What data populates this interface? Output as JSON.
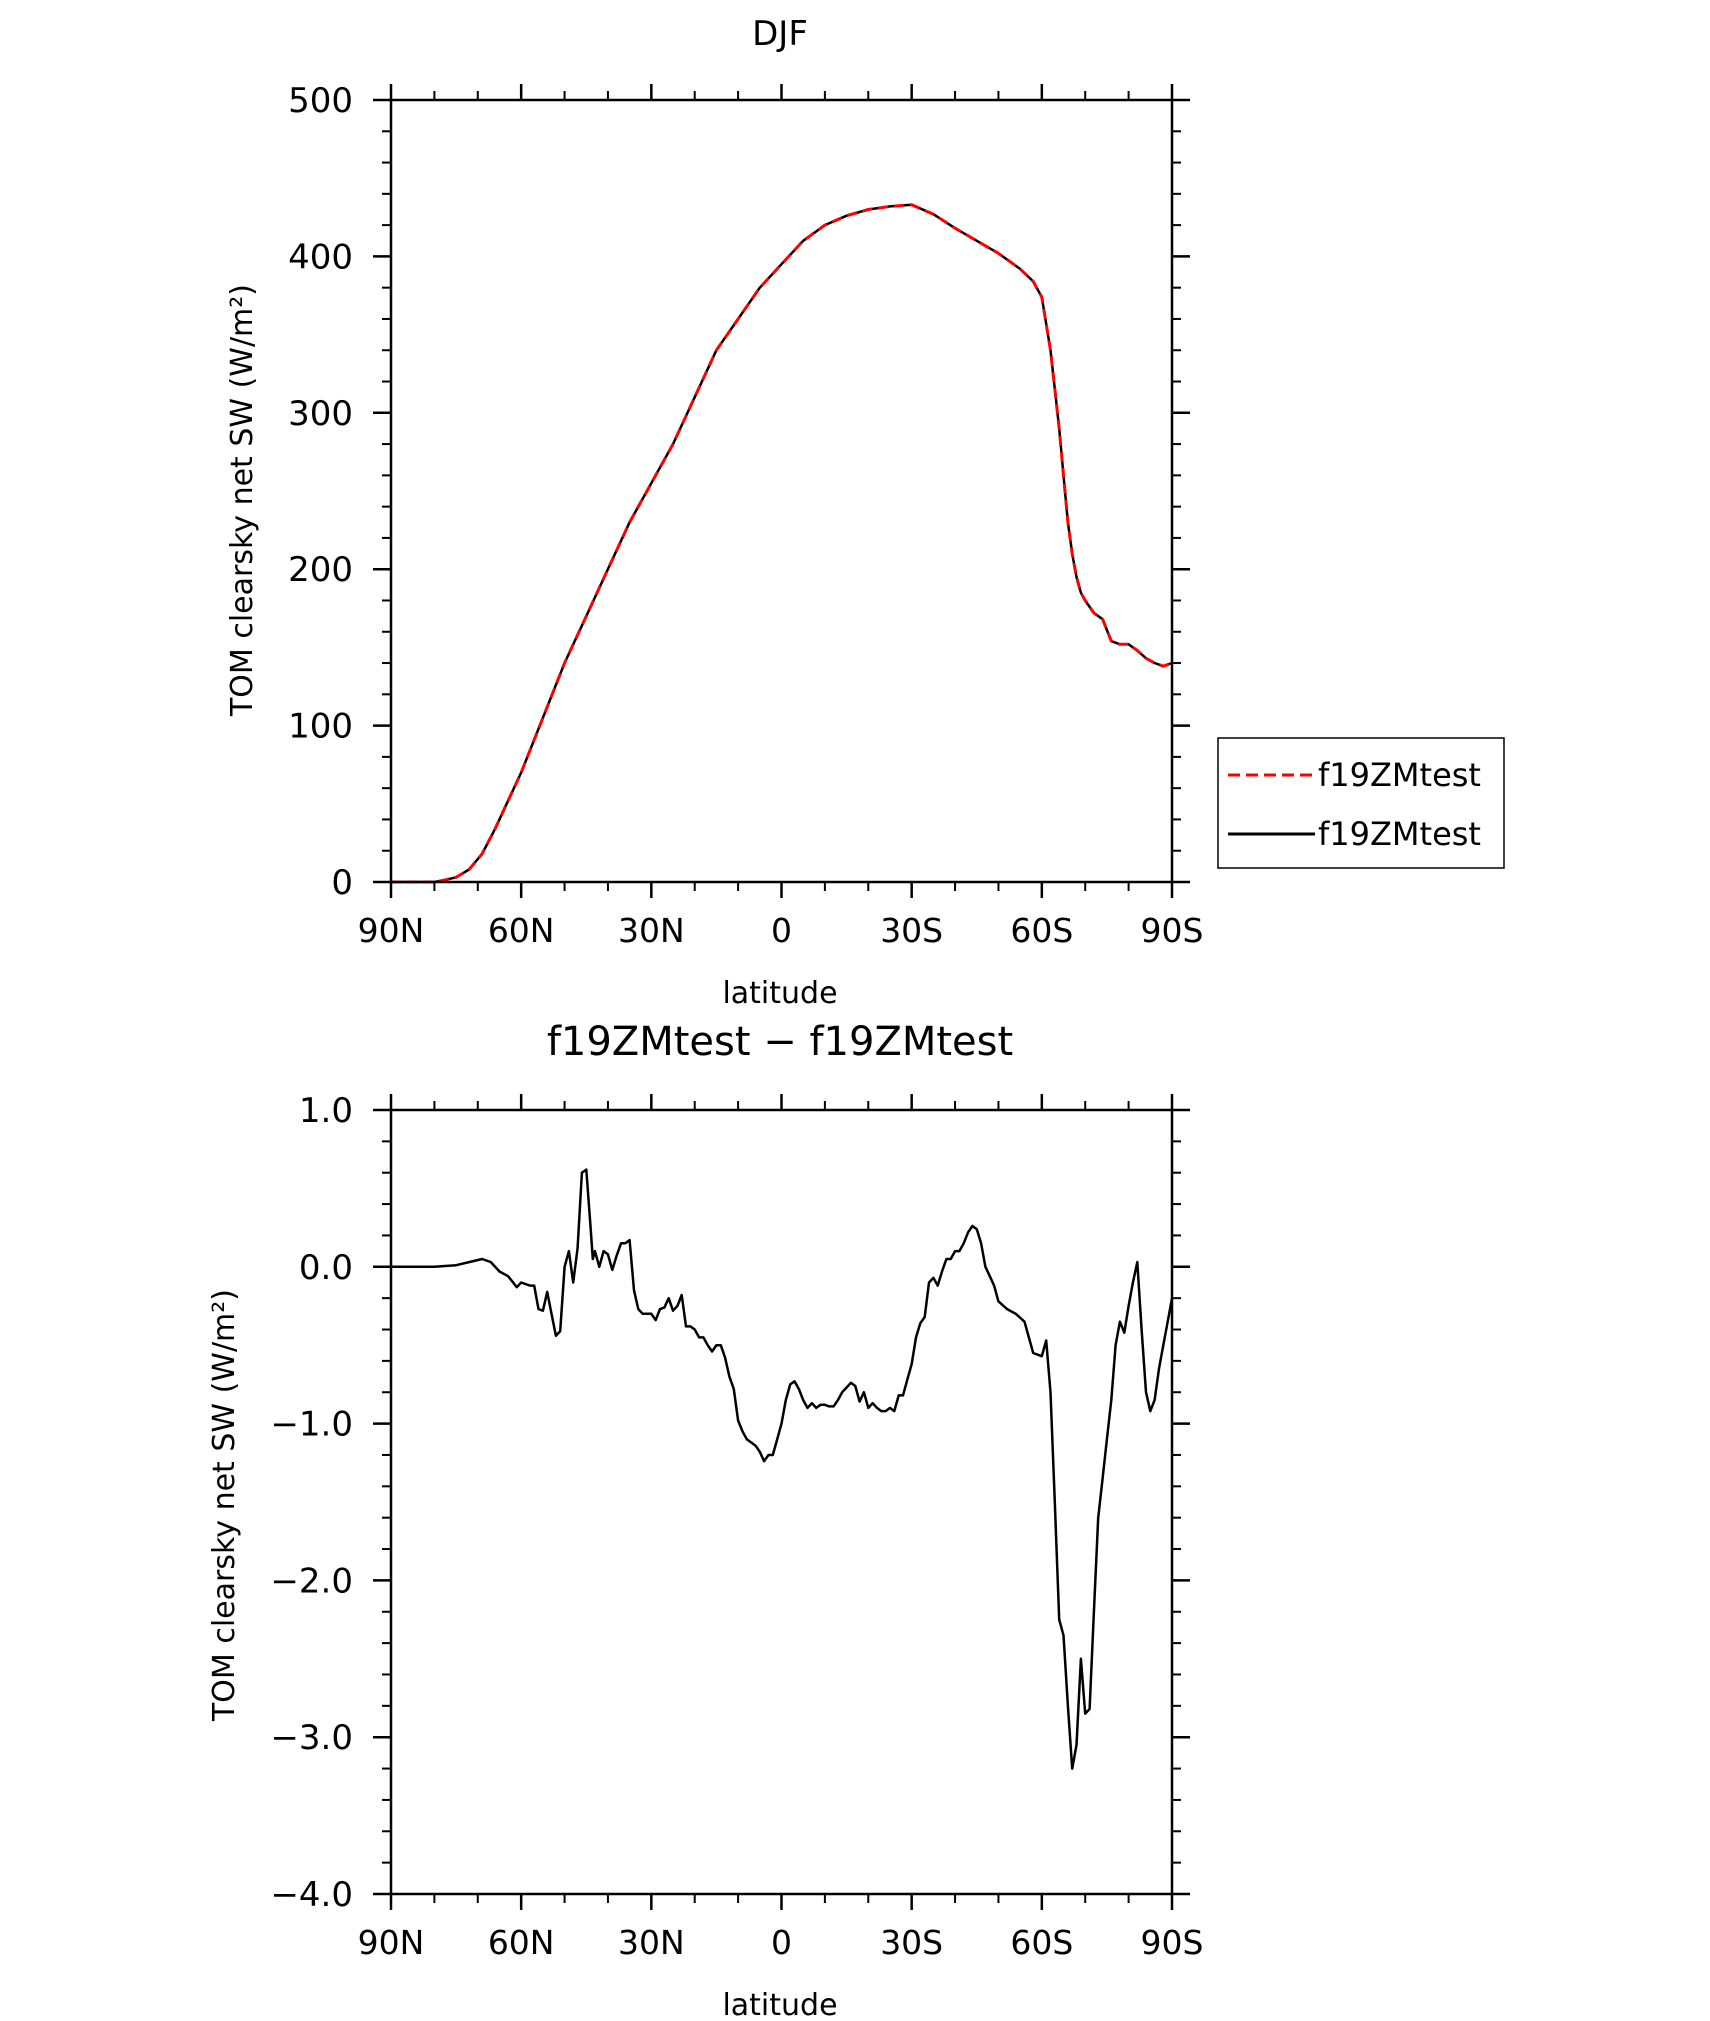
{
  "colors": {
    "axis": "#000000",
    "dashed_series": "#ff0000",
    "solid_series": "#000000"
  },
  "chart_data": [
    {
      "type": "line",
      "title": "DJF",
      "xlabel": "latitude",
      "ylabel": "TOM clearsky net SW (W/m²)",
      "xlim": [
        90,
        -90
      ],
      "ylim": [
        0,
        500
      ],
      "x_tick_values": [
        90,
        60,
        30,
        0,
        -30,
        -60,
        -90
      ],
      "x_tick_labels": [
        "90N",
        "60N",
        "30N",
        "0",
        "30S",
        "60S",
        "90S"
      ],
      "y_tick_values": [
        0,
        100,
        200,
        300,
        400,
        500
      ],
      "y_tick_labels": [
        "0",
        "100",
        "200",
        "300",
        "400",
        "500"
      ],
      "legend_position": "right",
      "series": [
        {
          "name": "f19ZMtest",
          "style": "dashed",
          "color": "#ff0000",
          "x": [
            90,
            85,
            80,
            78,
            75,
            72,
            69,
            66,
            63,
            60,
            55,
            50,
            45,
            40,
            35,
            33,
            30,
            25,
            20,
            15,
            10,
            5,
            0,
            -5,
            -10,
            -15,
            -20,
            -25,
            -30,
            -35,
            -40,
            -45,
            -50,
            -55,
            -58,
            -60,
            -62,
            -64,
            -65,
            -66,
            -67,
            -68,
            -69,
            -70,
            -72,
            -74,
            -76,
            -78,
            -80,
            -82,
            -84,
            -86,
            -88,
            -90
          ],
          "y": [
            0,
            0,
            0,
            1,
            3,
            8,
            18,
            34,
            52,
            70,
            105,
            140,
            170,
            200,
            230,
            240,
            255,
            280,
            310,
            340,
            360,
            380,
            395,
            410,
            420,
            426,
            430,
            432,
            433,
            427,
            418,
            410,
            402,
            392,
            384,
            374,
            340,
            290,
            260,
            230,
            210,
            195,
            185,
            180,
            172,
            168,
            154,
            152,
            152,
            148,
            143,
            140,
            138,
            140
          ]
        },
        {
          "name": "f19ZMtest",
          "style": "solid",
          "color": "#000000",
          "x": [
            90,
            85,
            80,
            78,
            75,
            72,
            69,
            66,
            63,
            60,
            55,
            50,
            45,
            40,
            35,
            33,
            30,
            25,
            20,
            15,
            10,
            5,
            0,
            -5,
            -10,
            -15,
            -20,
            -25,
            -30,
            -35,
            -40,
            -45,
            -50,
            -55,
            -58,
            -60,
            -62,
            -64,
            -65,
            -66,
            -67,
            -68,
            -69,
            -70,
            -72,
            -74,
            -76,
            -78,
            -80,
            -82,
            -84,
            -86,
            -88,
            -90
          ],
          "y": [
            0,
            0,
            0,
            1,
            3,
            8,
            18,
            34,
            52,
            70,
            105,
            140,
            170,
            200,
            230,
            240,
            255,
            280,
            310,
            340,
            360,
            380,
            395,
            410,
            420,
            426,
            430,
            432,
            433,
            427,
            418,
            410,
            402,
            392,
            384,
            374,
            340,
            290,
            260,
            230,
            210,
            195,
            185,
            180,
            172,
            168,
            154,
            152,
            152,
            148,
            143,
            140,
            138,
            140
          ]
        }
      ]
    },
    {
      "type": "line",
      "title": "f19ZMtest − f19ZMtest",
      "xlabel": "latitude",
      "ylabel": "TOM clearsky net SW (W/m²)",
      "xlim": [
        90,
        -90
      ],
      "ylim": [
        -4.0,
        1.0
      ],
      "x_tick_values": [
        90,
        60,
        30,
        0,
        -30,
        -60,
        -90
      ],
      "x_tick_labels": [
        "90N",
        "60N",
        "30N",
        "0",
        "30S",
        "60S",
        "90S"
      ],
      "y_tick_values": [
        -4.0,
        -3.0,
        -2.0,
        -1.0,
        0.0,
        1.0
      ],
      "y_tick_labels": [
        "−4.0",
        "−3.0",
        "−2.0",
        "−1.0",
        "0.0",
        "1.0"
      ],
      "series": [
        {
          "style": "solid",
          "color": "#000000",
          "x": [
            90,
            80,
            75,
            72,
            69,
            67,
            65,
            63,
            61,
            60,
            58,
            57,
            56,
            55,
            54,
            53,
            52,
            51,
            50,
            49,
            48,
            47,
            46,
            45,
            44,
            43.5,
            43,
            42,
            41,
            40,
            39,
            38,
            37,
            36,
            35,
            34,
            33,
            32,
            31,
            30,
            29,
            28,
            27,
            26,
            25,
            24,
            23,
            22,
            21,
            20,
            19,
            18,
            17,
            16,
            15,
            14,
            13,
            12,
            11,
            10,
            9,
            8,
            7,
            6,
            5,
            4,
            3,
            2,
            1,
            0,
            -1,
            -2,
            -3,
            -4,
            -5,
            -6,
            -7,
            -8,
            -9,
            -10,
            -11,
            -12,
            -13,
            -14,
            -15,
            -16,
            -17,
            -18,
            -19,
            -20,
            -21,
            -22,
            -23,
            -24,
            -25,
            -26,
            -27,
            -28,
            -29,
            -30,
            -31,
            -32,
            -33,
            -34,
            -35,
            -36,
            -37,
            -38,
            -39,
            -40,
            -41,
            -42,
            -43,
            -44,
            -45,
            -46,
            -47,
            -48,
            -49,
            -50,
            -52,
            -54,
            -56,
            -58,
            -60,
            -61,
            -62,
            -63,
            -64,
            -65,
            -66,
            -67,
            -68,
            -69,
            -70,
            -71,
            -72,
            -73,
            -74,
            -75,
            -76,
            -77,
            -78,
            -79,
            -80,
            -81,
            -82,
            -83,
            -84,
            -85,
            -86,
            -87,
            -88,
            -89,
            -90
          ],
          "y": [
            0,
            0,
            0.01,
            0.03,
            0.05,
            0.03,
            -0.03,
            -0.06,
            -0.13,
            -0.1,
            -0.12,
            -0.12,
            -0.27,
            -0.28,
            -0.16,
            -0.3,
            -0.44,
            -0.41,
            0,
            0.1,
            -0.1,
            0.12,
            0.6,
            0.62,
            0.25,
            0.05,
            0.1,
            0,
            0.1,
            0.08,
            -0.02,
            0.07,
            0.15,
            0.15,
            0.17,
            -0.15,
            -0.27,
            -0.3,
            -0.3,
            -0.3,
            -0.34,
            -0.27,
            -0.26,
            -0.2,
            -0.28,
            -0.25,
            -0.18,
            -0.38,
            -0.38,
            -0.4,
            -0.45,
            -0.45,
            -0.5,
            -0.54,
            -0.5,
            -0.5,
            -0.58,
            -0.7,
            -0.78,
            -0.98,
            -1.05,
            -1.1,
            -1.12,
            -1.14,
            -1.18,
            -1.24,
            -1.2,
            -1.2,
            -1.1,
            -1.0,
            -0.85,
            -0.75,
            -0.73,
            -0.78,
            -0.85,
            -0.9,
            -0.87,
            -0.9,
            -0.88,
            -0.88,
            -0.89,
            -0.89,
            -0.85,
            -0.8,
            -0.77,
            -0.74,
            -0.76,
            -0.86,
            -0.8,
            -0.9,
            -0.87,
            -0.9,
            -0.92,
            -0.92,
            -0.9,
            -0.92,
            -0.82,
            -0.82,
            -0.72,
            -0.62,
            -0.45,
            -0.36,
            -0.32,
            -0.1,
            -0.07,
            -0.12,
            -0.03,
            0.05,
            0.05,
            0.1,
            0.1,
            0.15,
            0.22,
            0.26,
            0.24,
            0.15,
            0,
            -0.06,
            -0.12,
            -0.22,
            -0.27,
            -0.3,
            -0.35,
            -0.55,
            -0.57,
            -0.47,
            -0.8,
            -1.5,
            -2.25,
            -2.35,
            -2.8,
            -3.2,
            -3.05,
            -2.5,
            -2.85,
            -2.82,
            -2.2,
            -1.6,
            -1.35,
            -1.1,
            -0.85,
            -0.5,
            -0.35,
            -0.42,
            -0.25,
            -0.1,
            0.03,
            -0.4,
            -0.8,
            -0.92,
            -0.85,
            -0.65,
            -0.5,
            -0.35,
            -0.2
          ]
        }
      ]
    }
  ]
}
